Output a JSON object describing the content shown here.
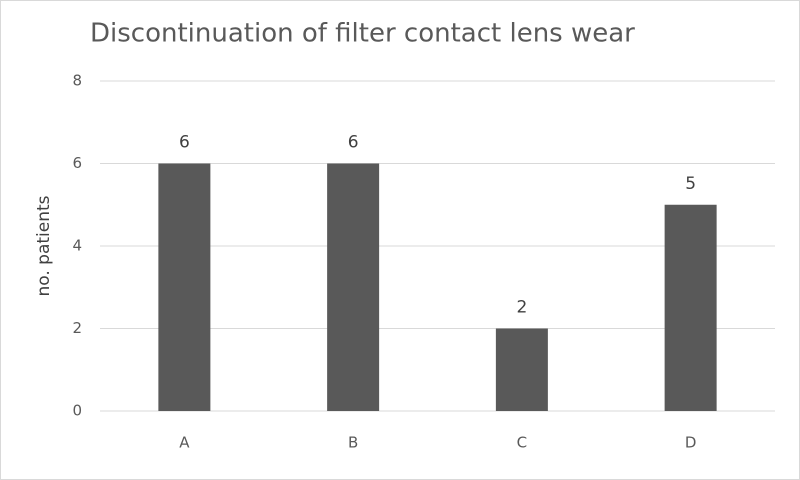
{
  "chart_data": {
    "type": "bar",
    "title": "Discontinuation of filter contact lens wear",
    "y_label": "no. patients",
    "categories": [
      "A",
      "B",
      "C",
      "D"
    ],
    "values": [
      6,
      6,
      2,
      5
    ],
    "color": "#595959",
    "ylim": [
      0,
      8
    ],
    "yticks": [
      0,
      2,
      4,
      6,
      8
    ],
    "grid": true,
    "data_labels": true
  }
}
